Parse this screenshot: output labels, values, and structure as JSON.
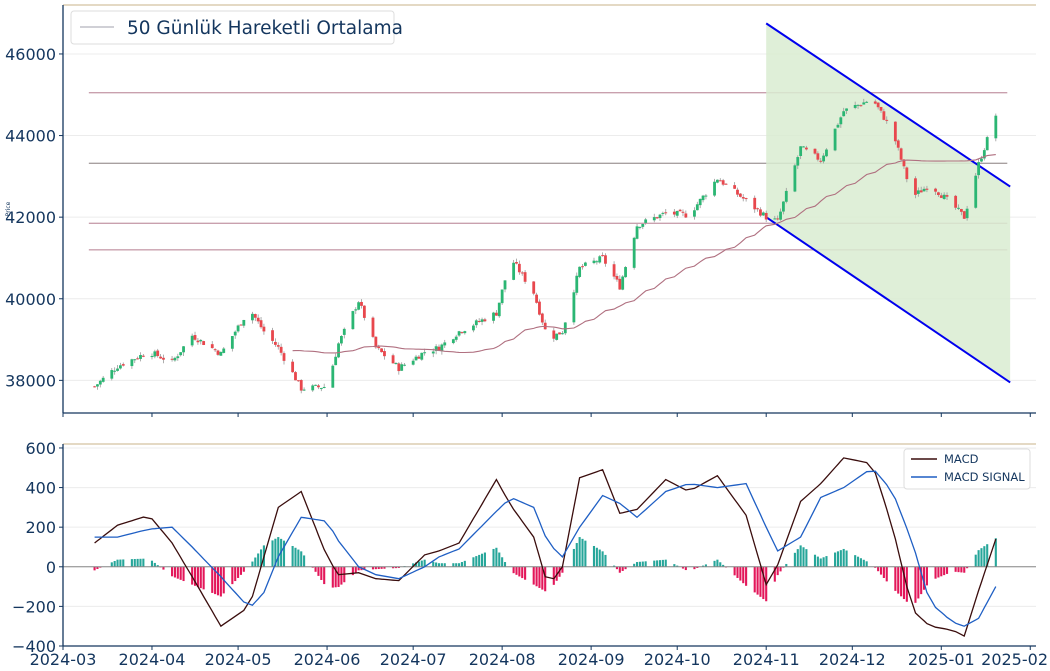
{
  "chart_data": [
    {
      "type": "candlestick",
      "ylabel": "Price",
      "ylim": [
        37200,
        47200
      ],
      "xlim": [
        "2024-03-01",
        "2025-02-03"
      ],
      "yticks": [
        38000,
        40000,
        42000,
        44000,
        46000
      ],
      "legend": {
        "position": "top-left",
        "entries": [
          "50 Günlük Hareketli Ortalama"
        ]
      },
      "grid": true,
      "colors": {
        "up": "#2bb673",
        "down": "#e8474d",
        "ma": "#b07080",
        "channel": "#0000ee",
        "channel_fill": "#d9ecd1",
        "hline_light": "#c9a0ae",
        "hline_mid": "#a8a0a0"
      },
      "horizontal_levels": [
        45050,
        43320,
        41850,
        41200
      ],
      "channel": {
        "upper": [
          [
            "2024-11-01",
            46750
          ],
          [
            "2025-01-25",
            42750
          ]
        ],
        "lower": [
          [
            "2024-11-01",
            42000
          ],
          [
            "2025-01-25",
            37950
          ]
        ],
        "band_start": "2024-11-01",
        "band_end": "2025-01-25"
      },
      "close_anchors": [
        [
          "2024-03-12",
          37850
        ],
        [
          "2024-03-20",
          38350
        ],
        [
          "2024-03-31",
          38700
        ],
        [
          "2024-04-08",
          38450
        ],
        [
          "2024-04-15",
          39100
        ],
        [
          "2024-04-25",
          38650
        ],
        [
          "2024-05-05",
          39750
        ],
        [
          "2024-05-10",
          39200
        ],
        [
          "2024-05-15",
          38800
        ],
        [
          "2024-05-23",
          37800
        ],
        [
          "2024-06-01",
          37850
        ],
        [
          "2024-06-05",
          38900
        ],
        [
          "2024-06-12",
          39950
        ],
        [
          "2024-06-18",
          38800
        ],
        [
          "2024-06-26",
          38300
        ],
        [
          "2024-07-05",
          38700
        ],
        [
          "2024-07-10",
          38800
        ],
        [
          "2024-07-17",
          39200
        ],
        [
          "2024-07-30",
          39650
        ],
        [
          "2024-08-04",
          41000
        ],
        [
          "2024-08-12",
          40150
        ],
        [
          "2024-08-17",
          39000
        ],
        [
          "2024-08-22",
          39200
        ],
        [
          "2024-08-28",
          40750
        ],
        [
          "2024-09-05",
          41000
        ],
        [
          "2024-09-11",
          40300
        ],
        [
          "2024-09-17",
          41800
        ],
        [
          "2024-09-27",
          42100
        ],
        [
          "2024-10-05",
          42050
        ],
        [
          "2024-10-15",
          42950
        ],
        [
          "2024-10-25",
          42400
        ],
        [
          "2024-11-01",
          42000
        ],
        [
          "2024-11-05",
          41900
        ],
        [
          "2024-11-13",
          43700
        ],
        [
          "2024-11-20",
          43400
        ],
        [
          "2024-11-28",
          44600
        ],
        [
          "2024-12-08",
          44900
        ],
        [
          "2024-12-15",
          44100
        ],
        [
          "2024-12-22",
          42500
        ],
        [
          "2024-12-28",
          42800
        ],
        [
          "2025-01-05",
          42300
        ],
        [
          "2025-01-09",
          42000
        ],
        [
          "2025-01-14",
          43300
        ],
        [
          "2025-01-20",
          44500
        ]
      ]
    },
    {
      "type": "line",
      "ylim": [
        -400,
        620
      ],
      "yticks": [
        -400,
        -200,
        0,
        200,
        400,
        600
      ],
      "xticks": [
        "2024-03",
        "2024-04",
        "2024-05",
        "2024-06",
        "2024-07",
        "2024-08",
        "2024-09",
        "2024-10",
        "2024-11",
        "2024-12",
        "2025-01",
        "2025-02"
      ],
      "legend": {
        "position": "top-right"
      },
      "grid": true,
      "series": [
        {
          "name": "MACD",
          "color": "#3a0d0d",
          "anchors": [
            [
              "2024-03-12",
              120
            ],
            [
              "2024-03-20",
              210
            ],
            [
              "2024-03-31",
              260
            ],
            [
              "2024-04-08",
              120
            ],
            [
              "2024-04-15",
              -50
            ],
            [
              "2024-04-25",
              -300
            ],
            [
              "2024-05-05",
              -200
            ],
            [
              "2024-05-10",
              50
            ],
            [
              "2024-05-15",
              300
            ],
            [
              "2024-05-23",
              380
            ],
            [
              "2024-06-01",
              50
            ],
            [
              "2024-06-05",
              -40
            ],
            [
              "2024-06-12",
              -30
            ],
            [
              "2024-06-18",
              -60
            ],
            [
              "2024-06-26",
              -70
            ],
            [
              "2024-07-05",
              60
            ],
            [
              "2024-07-10",
              80
            ],
            [
              "2024-07-17",
              120
            ],
            [
              "2024-07-30",
              440
            ],
            [
              "2024-08-04",
              310
            ],
            [
              "2024-08-12",
              150
            ],
            [
              "2024-08-17",
              -100
            ],
            [
              "2024-08-22",
              0
            ],
            [
              "2024-08-28",
              450
            ],
            [
              "2024-09-05",
              490
            ],
            [
              "2024-09-11",
              270
            ],
            [
              "2024-09-17",
              290
            ],
            [
              "2024-09-27",
              440
            ],
            [
              "2024-10-05",
              380
            ],
            [
              "2024-10-15",
              460
            ],
            [
              "2024-10-25",
              260
            ],
            [
              "2024-11-01",
              -90
            ],
            [
              "2024-11-05",
              10
            ],
            [
              "2024-11-13",
              330
            ],
            [
              "2024-11-20",
              420
            ],
            [
              "2024-11-28",
              550
            ],
            [
              "2024-12-08",
              520
            ],
            [
              "2024-12-15",
              200
            ],
            [
              "2024-12-22",
              -220
            ],
            [
              "2024-12-28",
              -300
            ],
            [
              "2025-01-05",
              -320
            ],
            [
              "2025-01-09",
              -350
            ],
            [
              "2025-01-14",
              -120
            ],
            [
              "2025-01-20",
              140
            ]
          ]
        },
        {
          "name": "MACD SIGNAL",
          "color": "#1f5fc4",
          "anchors": [
            [
              "2024-03-12",
              150
            ],
            [
              "2024-03-20",
              150
            ],
            [
              "2024-03-31",
              190
            ],
            [
              "2024-04-08",
              200
            ],
            [
              "2024-04-15",
              100
            ],
            [
              "2024-04-25",
              -50
            ],
            [
              "2024-05-05",
              -210
            ],
            [
              "2024-05-10",
              -130
            ],
            [
              "2024-05-15",
              50
            ],
            [
              "2024-05-23",
              250
            ],
            [
              "2024-06-01",
              230
            ],
            [
              "2024-06-05",
              130
            ],
            [
              "2024-06-12",
              0
            ],
            [
              "2024-06-18",
              -40
            ],
            [
              "2024-06-26",
              -60
            ],
            [
              "2024-07-05",
              0
            ],
            [
              "2024-07-10",
              50
            ],
            [
              "2024-07-17",
              90
            ],
            [
              "2024-07-30",
              280
            ],
            [
              "2024-08-04",
              350
            ],
            [
              "2024-08-12",
              300
            ],
            [
              "2024-08-17",
              120
            ],
            [
              "2024-08-22",
              50
            ],
            [
              "2024-08-28",
              200
            ],
            [
              "2024-09-05",
              360
            ],
            [
              "2024-09-11",
              320
            ],
            [
              "2024-09-17",
              250
            ],
            [
              "2024-09-27",
              380
            ],
            [
              "2024-10-05",
              420
            ],
            [
              "2024-10-15",
              400
            ],
            [
              "2024-10-25",
              420
            ],
            [
              "2024-11-01",
              200
            ],
            [
              "2024-11-05",
              80
            ],
            [
              "2024-11-13",
              150
            ],
            [
              "2024-11-20",
              350
            ],
            [
              "2024-11-28",
              400
            ],
            [
              "2024-12-08",
              500
            ],
            [
              "2024-12-15",
              380
            ],
            [
              "2024-12-22",
              120
            ],
            [
              "2024-12-28",
              -180
            ],
            [
              "2025-01-05",
              -280
            ],
            [
              "2025-01-09",
              -300
            ],
            [
              "2025-01-14",
              -260
            ],
            [
              "2025-01-20",
              -100
            ]
          ]
        }
      ],
      "histogram": {
        "name": "MACD - MACD SIGNAL",
        "up_color": "#26a69a",
        "down_color": "#e3175a"
      }
    }
  ]
}
